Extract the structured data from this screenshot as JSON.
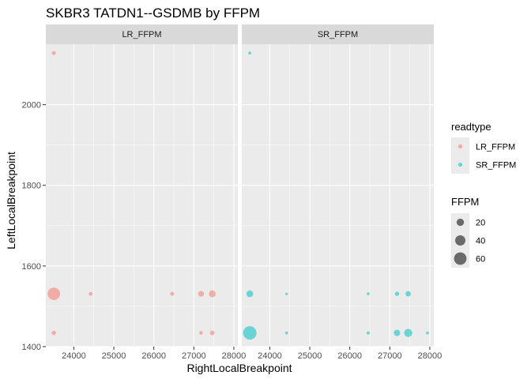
{
  "chart_data": {
    "type": "scatter",
    "title": "SKBR3 TATDN1--GSDMB by FFPM",
    "xlabel": "RightLocalBreakpoint",
    "ylabel": "LeftLocalBreakpoint",
    "xlim": [
      23300,
      28100
    ],
    "ylim": [
      1400,
      2150
    ],
    "xticks": [
      24000,
      25000,
      26000,
      27000,
      28000
    ],
    "yticks": [
      1400,
      1600,
      1800,
      2000
    ],
    "grid": true,
    "legend_position": "right",
    "color_legend": {
      "title": "readtype",
      "entries": [
        {
          "label": "LR_FFPM",
          "color": "#F8766D"
        },
        {
          "label": "SR_FFPM",
          "color": "#00BFC4"
        }
      ]
    },
    "size_legend": {
      "title": "FFPM",
      "entries": [
        {
          "label": "20",
          "value": 20
        },
        {
          "label": "40",
          "value": 40
        },
        {
          "label": "60",
          "value": 60
        }
      ]
    },
    "size_range": [
      1,
      70
    ],
    "panels": [
      {
        "strip": "LR_FFPM",
        "color": "#F8766D",
        "points": [
          {
            "x": 23500,
            "y": 2128,
            "ffpm": 5
          },
          {
            "x": 23500,
            "y": 1531,
            "ffpm": 60
          },
          {
            "x": 23500,
            "y": 1434,
            "ffpm": 6
          },
          {
            "x": 24420,
            "y": 1531,
            "ffpm": 4
          },
          {
            "x": 26460,
            "y": 1531,
            "ffpm": 5
          },
          {
            "x": 27180,
            "y": 1531,
            "ffpm": 12
          },
          {
            "x": 27180,
            "y": 1434,
            "ffpm": 4
          },
          {
            "x": 27460,
            "y": 1531,
            "ffpm": 17
          },
          {
            "x": 27460,
            "y": 1434,
            "ffpm": 7
          }
        ]
      },
      {
        "strip": "SR_FFPM",
        "color": "#00BFC4",
        "points": [
          {
            "x": 23500,
            "y": 2128,
            "ffpm": 2
          },
          {
            "x": 23500,
            "y": 1531,
            "ffpm": 17
          },
          {
            "x": 23500,
            "y": 1434,
            "ffpm": 70
          },
          {
            "x": 24420,
            "y": 1531,
            "ffpm": 1.5
          },
          {
            "x": 24420,
            "y": 1434,
            "ffpm": 2
          },
          {
            "x": 26460,
            "y": 1531,
            "ffpm": 2
          },
          {
            "x": 26460,
            "y": 1434,
            "ffpm": 3
          },
          {
            "x": 27180,
            "y": 1531,
            "ffpm": 6
          },
          {
            "x": 27180,
            "y": 1434,
            "ffpm": 15
          },
          {
            "x": 27460,
            "y": 1531,
            "ffpm": 10
          },
          {
            "x": 27460,
            "y": 1434,
            "ffpm": 25
          },
          {
            "x": 27940,
            "y": 1434,
            "ffpm": 2
          }
        ]
      }
    ]
  }
}
